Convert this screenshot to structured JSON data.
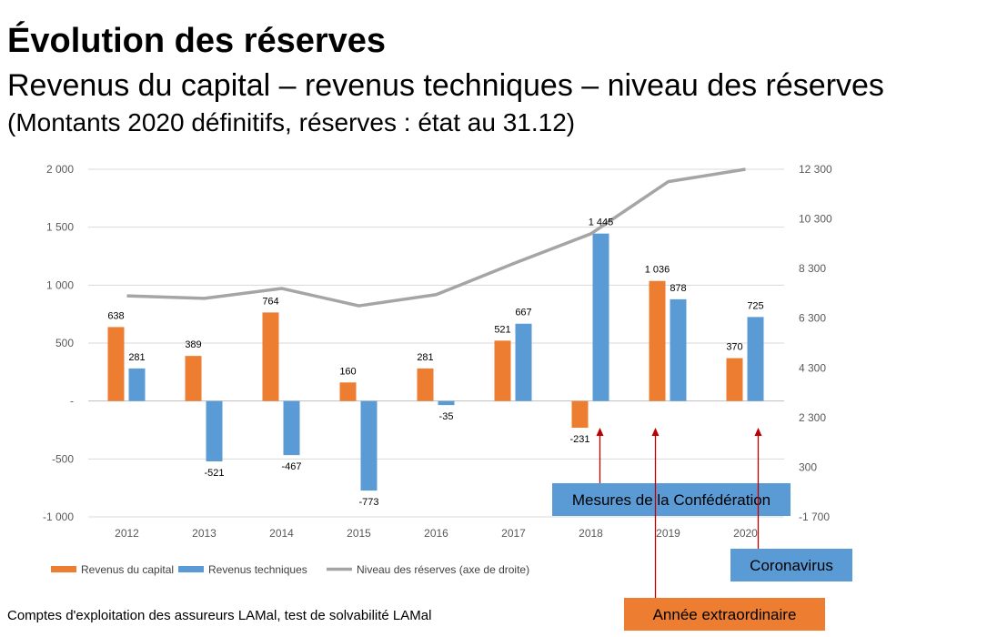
{
  "header": {
    "title": "Évolution des réserves",
    "subtitle": "Revenus du capital – revenus techniques – niveau des réserves",
    "subtitle2": "(Montants 2020 définitifs, réserves : état au 31.12)"
  },
  "footer": {
    "source": "Comptes d'exploitation des assureurs LAMal, test de solvabilité LAMal"
  },
  "chart_data": {
    "type": "bar",
    "categories": [
      "2012",
      "2013",
      "2014",
      "2015",
      "2016",
      "2017",
      "2018",
      "2019",
      "2020"
    ],
    "series": [
      {
        "name": "Revenus du capital",
        "kind": "bar",
        "axis": "left",
        "color": "#ED7D31",
        "values": [
          638,
          389,
          764,
          160,
          281,
          521,
          -231,
          1036,
          370
        ],
        "labels": [
          "638",
          "389",
          "764",
          "160",
          "281",
          "521",
          "-231",
          "1 036",
          "370"
        ]
      },
      {
        "name": "Revenus techniques",
        "kind": "bar",
        "axis": "left",
        "color": "#5B9BD5",
        "values": [
          281,
          -521,
          -467,
          -773,
          -35,
          667,
          1445,
          878,
          725
        ],
        "labels": [
          "281",
          "-521",
          "-467",
          "-773",
          "-35",
          "667",
          "1 445",
          "878",
          "725"
        ]
      },
      {
        "name": "Niveau des réserves (axe de droite)",
        "kind": "line",
        "axis": "right",
        "color": "#A5A5A5",
        "values": [
          7200,
          7100,
          7500,
          6800,
          7250,
          8500,
          9700,
          11800,
          12300
        ]
      }
    ],
    "y_left": {
      "min": -1000,
      "max": 2000,
      "ticks": [
        2000,
        1500,
        1000,
        500,
        0,
        -500,
        -1000
      ],
      "tick_labels": [
        "2 000",
        "1 500",
        "1 000",
        "500",
        "-",
        "-500",
        "-1 000"
      ]
    },
    "y_right": {
      "min": -1700,
      "max": 12300,
      "ticks": [
        12300,
        10300,
        8300,
        6300,
        4300,
        2300,
        300,
        -1700
      ],
      "tick_labels": [
        "12 300",
        "10 300",
        "8 300",
        "6 300",
        "4 300",
        "2 300",
        "300",
        "-1 700"
      ]
    },
    "grid": true,
    "legend_position": "bottom-left",
    "annotations": [
      {
        "text": "Mesures de la Confédération",
        "target": "2018",
        "color": "#5B9BD5"
      },
      {
        "text": "Année extraordinaire",
        "target": "2019",
        "color": "#ED7D31"
      },
      {
        "text": "Coronavirus",
        "target": "2020",
        "color": "#5B9BD5"
      }
    ],
    "arrow_color": "#C00000"
  }
}
